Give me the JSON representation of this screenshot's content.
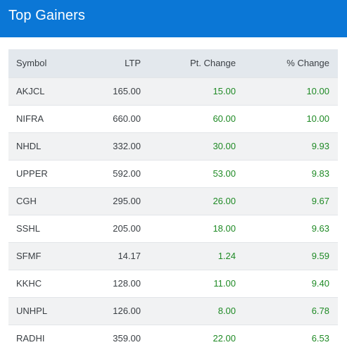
{
  "header": {
    "title": "Top Gainers"
  },
  "table": {
    "columns": [
      "Symbol",
      "LTP",
      "Pt. Change",
      "% Change"
    ],
    "rows": [
      {
        "symbol": "AKJCL",
        "ltp": "165.00",
        "pt_change": "15.00",
        "pct_change": "10.00"
      },
      {
        "symbol": "NIFRA",
        "ltp": "660.00",
        "pt_change": "60.00",
        "pct_change": "10.00"
      },
      {
        "symbol": "NHDL",
        "ltp": "332.00",
        "pt_change": "30.00",
        "pct_change": "9.93"
      },
      {
        "symbol": "UPPER",
        "ltp": "592.00",
        "pt_change": "53.00",
        "pct_change": "9.83"
      },
      {
        "symbol": "CGH",
        "ltp": "295.00",
        "pt_change": "26.00",
        "pct_change": "9.67"
      },
      {
        "symbol": "SSHL",
        "ltp": "205.00",
        "pt_change": "18.00",
        "pct_change": "9.63"
      },
      {
        "symbol": "SFMF",
        "ltp": "14.17",
        "pt_change": "1.24",
        "pct_change": "9.59"
      },
      {
        "symbol": "KKHC",
        "ltp": "128.00",
        "pt_change": "11.00",
        "pct_change": "9.40"
      },
      {
        "symbol": "UNHPL",
        "ltp": "126.00",
        "pt_change": "8.00",
        "pct_change": "6.78"
      },
      {
        "symbol": "RADHI",
        "ltp": "359.00",
        "pt_change": "22.00",
        "pct_change": "6.53"
      }
    ]
  },
  "colors": {
    "header_bg": "#0b77d6",
    "gain": "#1f8a25"
  }
}
